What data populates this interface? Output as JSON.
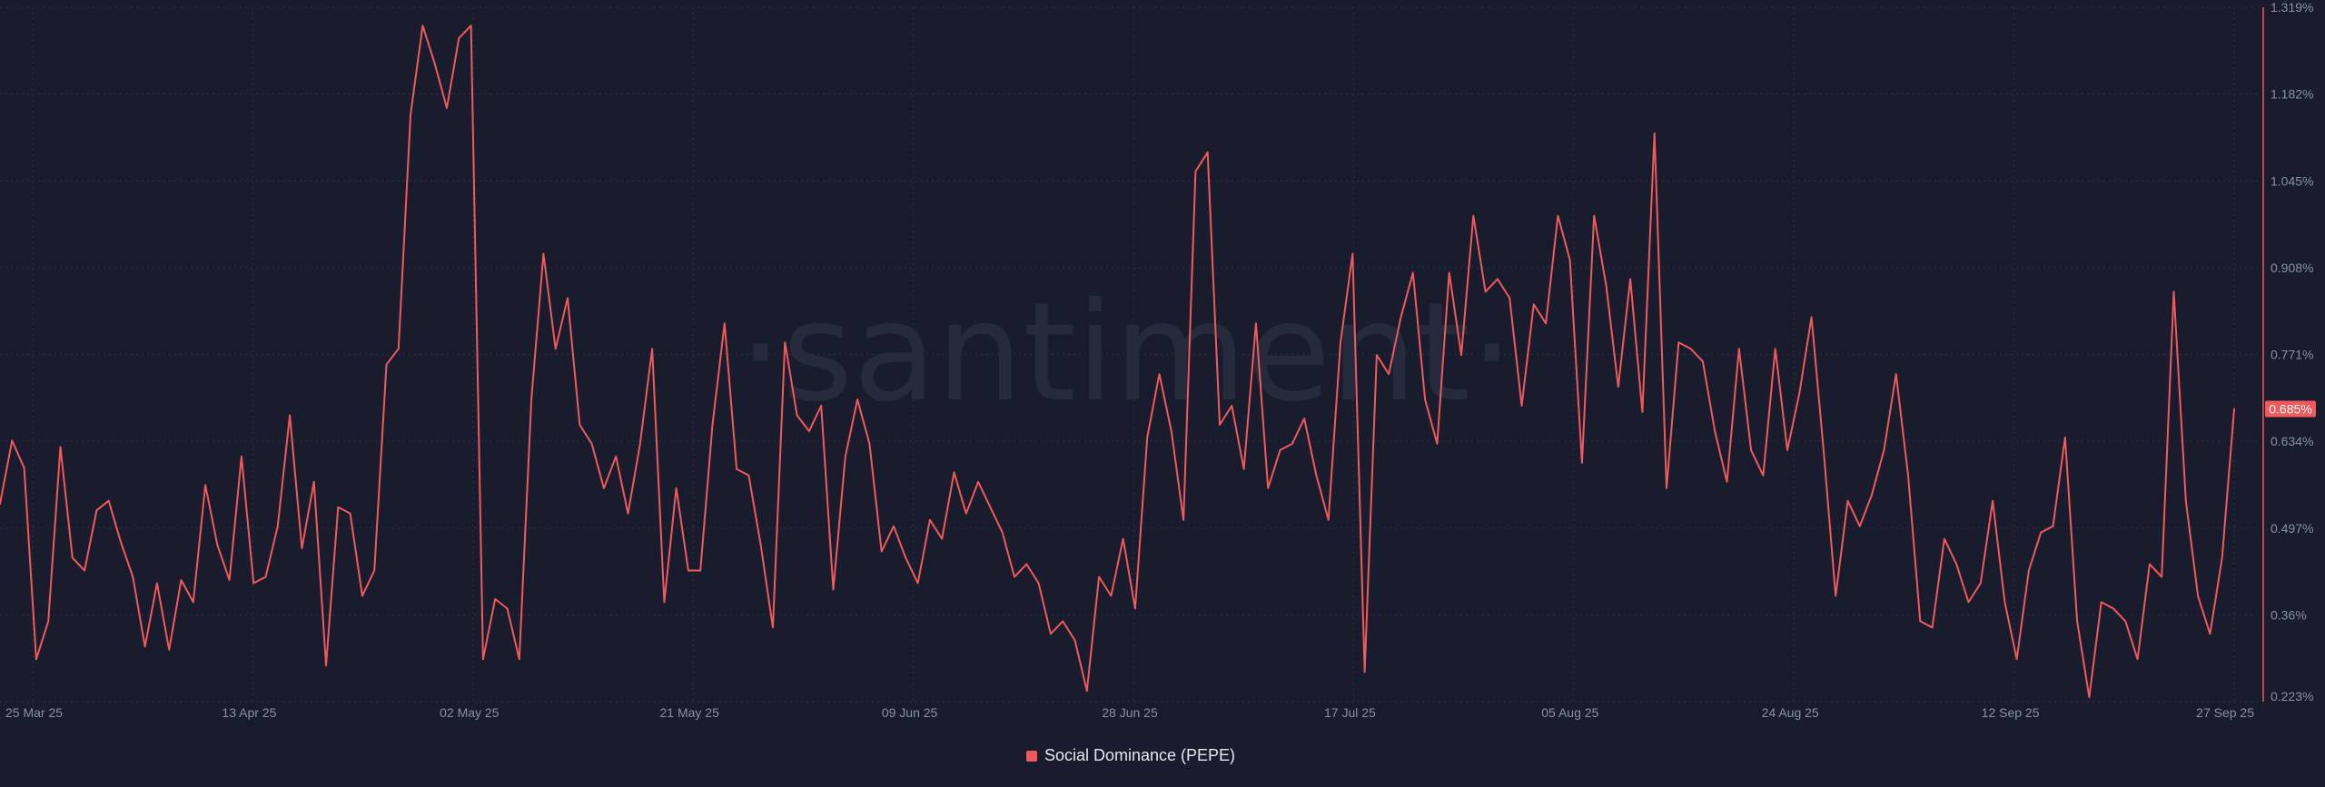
{
  "watermark": "·santiment·",
  "legend": {
    "label": "Social Dominance (PEPE)",
    "color": "#f05a5c"
  },
  "current_value_badge": "0.685%",
  "chart_data": {
    "type": "line",
    "x_tick_labels": [
      "25 Mar 25",
      "13 Apr 25",
      "02 May 25",
      "21 May 25",
      "09 Jun 25",
      "28 Jun 25",
      "17 Jul 25",
      "05 Aug 25",
      "24 Aug 25",
      "12 Sep 25",
      "27 Sep 25"
    ],
    "y_tick_labels": [
      "1.319%",
      "1.182%",
      "1.045%",
      "0.908%",
      "0.771%",
      "0.634%",
      "0.497%",
      "0.36%",
      "0.223%"
    ],
    "ylim": [
      0.223,
      1.319
    ],
    "grid": true,
    "legend_position": "bottom-center",
    "series": [
      {
        "name": "Social Dominance (PEPE)",
        "color": "#f05a5c",
        "values": [
          0.535,
          0.635,
          0.592,
          0.29,
          0.35,
          0.625,
          0.45,
          0.43,
          0.525,
          0.54,
          0.475,
          0.42,
          0.31,
          0.41,
          0.305,
          0.415,
          0.38,
          0.565,
          0.47,
          0.415,
          0.61,
          0.41,
          0.42,
          0.5,
          0.675,
          0.465,
          0.57,
          0.28,
          0.53,
          0.52,
          0.39,
          0.43,
          0.755,
          0.78,
          1.15,
          1.29,
          1.23,
          1.16,
          1.27,
          1.29,
          0.29,
          0.385,
          0.37,
          0.29,
          0.7,
          0.93,
          0.78,
          0.86,
          0.66,
          0.63,
          0.56,
          0.61,
          0.52,
          0.63,
          0.78,
          0.38,
          0.56,
          0.43,
          0.43,
          0.66,
          0.82,
          0.59,
          0.58,
          0.47,
          0.34,
          0.79,
          0.675,
          0.65,
          0.69,
          0.4,
          0.61,
          0.7,
          0.63,
          0.46,
          0.5,
          0.45,
          0.41,
          0.51,
          0.48,
          0.585,
          0.52,
          0.57,
          0.53,
          0.49,
          0.42,
          0.44,
          0.41,
          0.33,
          0.35,
          0.32,
          0.24,
          0.42,
          0.39,
          0.48,
          0.37,
          0.64,
          0.74,
          0.65,
          0.51,
          1.06,
          1.09,
          0.66,
          0.69,
          0.59,
          0.82,
          0.56,
          0.62,
          0.63,
          0.67,
          0.58,
          0.51,
          0.79,
          0.93,
          0.27,
          0.77,
          0.74,
          0.83,
          0.9,
          0.7,
          0.63,
          0.9,
          0.77,
          0.99,
          0.87,
          0.89,
          0.86,
          0.69,
          0.85,
          0.82,
          0.99,
          0.92,
          0.6,
          0.99,
          0.88,
          0.72,
          0.89,
          0.68,
          1.12,
          0.56,
          0.79,
          0.78,
          0.76,
          0.65,
          0.57,
          0.78,
          0.62,
          0.58,
          0.78,
          0.62,
          0.71,
          0.83,
          0.62,
          0.39,
          0.54,
          0.5,
          0.55,
          0.62,
          0.74,
          0.58,
          0.35,
          0.34,
          0.48,
          0.44,
          0.38,
          0.41,
          0.54,
          0.38,
          0.29,
          0.43,
          0.49,
          0.5,
          0.64,
          0.35,
          0.23,
          0.38,
          0.37,
          0.35,
          0.29,
          0.44,
          0.42,
          0.87,
          0.54,
          0.39,
          0.33,
          0.45,
          0.685
        ]
      }
    ]
  }
}
